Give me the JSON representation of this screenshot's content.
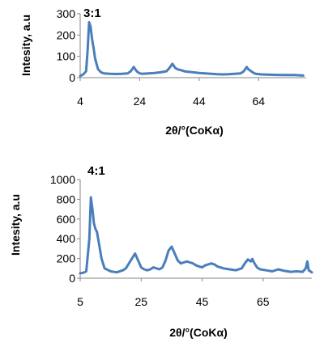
{
  "chart_data": [
    {
      "type": "line",
      "title": "3:1",
      "xlabel": "2θ/°(CoKα)",
      "ylabel": "Intesity, a.u",
      "xlim": [
        4,
        80
      ],
      "ylim": [
        0,
        300
      ],
      "xticks": [
        4,
        24,
        44,
        64
      ],
      "yticks": [
        0,
        100,
        200,
        300
      ],
      "grid": false,
      "legend": "none",
      "color": "#4a7ebb",
      "series": [
        {
          "x": [
            4,
            5,
            6,
            6.5,
            7,
            7.5,
            8,
            8.5,
            9,
            10,
            11,
            12,
            14,
            16,
            18,
            20,
            21,
            22,
            22.5,
            23,
            24,
            25,
            27,
            29,
            31,
            33,
            34,
            35,
            35.5,
            36,
            37,
            38,
            39,
            40,
            42,
            44,
            46,
            48,
            50,
            52,
            54,
            56,
            58,
            59,
            60,
            60.5,
            61,
            62,
            63,
            65,
            67,
            70,
            73,
            76,
            79
          ],
          "y": [
            8,
            15,
            30,
            130,
            260,
            240,
            180,
            140,
            90,
            40,
            25,
            20,
            18,
            17,
            18,
            20,
            30,
            50,
            40,
            30,
            20,
            18,
            20,
            22,
            25,
            30,
            45,
            65,
            55,
            45,
            38,
            35,
            30,
            28,
            25,
            22,
            20,
            18,
            16,
            15,
            16,
            18,
            20,
            30,
            50,
            40,
            35,
            25,
            18,
            15,
            14,
            13,
            12,
            12,
            10
          ]
        }
      ]
    },
    {
      "type": "line",
      "title": "4:1",
      "xlabel": "2θ/°(CoKα)",
      "ylabel": "Intesity, a.u",
      "xlim": [
        5,
        81
      ],
      "ylim": [
        0,
        1000
      ],
      "xticks": [
        5,
        25,
        45,
        65
      ],
      "yticks": [
        0,
        200,
        400,
        600,
        800,
        1000
      ],
      "grid": false,
      "legend": "none",
      "color": "#4a7ebb",
      "series": [
        {
          "x": [
            5,
            6,
            7,
            8,
            8.5,
            9,
            9.5,
            10,
            10.5,
            11,
            12,
            13,
            15,
            17,
            19,
            20,
            21,
            22,
            23,
            24,
            25,
            26,
            27,
            28,
            29,
            30,
            31,
            32,
            33,
            34,
            35,
            36,
            37,
            38,
            39,
            40,
            41,
            42,
            43,
            44,
            45,
            46,
            47,
            48,
            49,
            50,
            52,
            54,
            56,
            58,
            59,
            60,
            61,
            61.5,
            62,
            63,
            64,
            66,
            68,
            70,
            72,
            74,
            76,
            78,
            79,
            79.5,
            80,
            81
          ],
          "y": [
            50,
            55,
            70,
            400,
            820,
            700,
            560,
            500,
            470,
            380,
            200,
            100,
            70,
            60,
            80,
            100,
            150,
            200,
            250,
            180,
            110,
            90,
            80,
            90,
            110,
            100,
            90,
            110,
            180,
            280,
            320,
            250,
            180,
            150,
            160,
            170,
            160,
            150,
            130,
            120,
            110,
            130,
            140,
            150,
            140,
            120,
            100,
            90,
            80,
            100,
            150,
            190,
            170,
            195,
            160,
            110,
            90,
            80,
            70,
            90,
            75,
            65,
            70,
            65,
            100,
            170,
            80,
            60
          ]
        }
      ]
    }
  ]
}
